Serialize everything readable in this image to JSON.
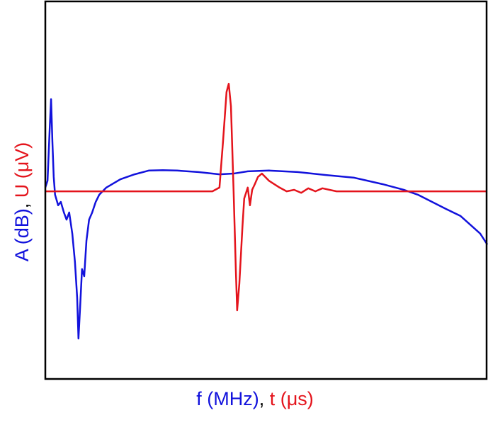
{
  "chart_data": {
    "type": "line",
    "xlabel": [
      {
        "text": "f (MHz)",
        "color": "#1212dc"
      },
      {
        "text": ", ",
        "color": "#000000"
      },
      {
        "text": "t (μs)",
        "color": "#e4141c"
      }
    ],
    "ylabel": [
      {
        "text": "A (dB)",
        "color": "#1212dc"
      },
      {
        "text": ", ",
        "color": "#000000"
      },
      {
        "text": "U (μV)",
        "color": "#e4141c"
      }
    ],
    "xlim": [
      0,
      100
    ],
    "ylim": [
      0,
      100
    ],
    "series": [
      {
        "color": "#1212dc",
        "x": [
          0,
          0.5,
          1.0,
          1.3,
          1.6,
          1.9,
          2.2,
          2.9,
          3.5,
          4.2,
          4.8,
          5.4,
          6.1,
          6.7,
          7.2,
          7.5,
          7.9,
          8.3,
          8.8,
          9.3,
          9.9,
          10.6,
          11.4,
          12.2,
          13.8,
          17.0,
          20.2,
          23.4,
          26.6,
          29.8,
          34.6,
          39.4,
          42.6,
          45.8,
          50.6,
          57.1,
          63.5,
          69.9,
          76.3,
          81.1,
          84.3,
          87.5,
          90.7,
          93.9,
          96.3,
          98.4,
          100
        ],
        "values": [
          50.7,
          52.5,
          66.6,
          74.1,
          62.8,
          53.5,
          48.8,
          46.0,
          46.9,
          44.1,
          42.2,
          44.1,
          38.5,
          31.0,
          21.6,
          10.7,
          19.7,
          29.1,
          27.2,
          36.6,
          42.2,
          44.1,
          46.9,
          48.8,
          50.7,
          52.9,
          54.2,
          55.2,
          55.3,
          55.2,
          54.8,
          54.2,
          54.4,
          55.0,
          55.2,
          54.8,
          54.0,
          53.3,
          51.6,
          50.1,
          48.8,
          46.9,
          45.0,
          43.2,
          40.7,
          38.5,
          35.6
        ]
      },
      {
        "color": "#e4141c",
        "x": [
          0,
          37.8,
          39.4,
          40.2,
          41.0,
          41.5,
          42.0,
          42.6,
          43.1,
          43.4,
          43.9,
          44.6,
          45.0,
          45.8,
          46.3,
          46.8,
          47.4,
          48.1,
          49.0,
          50.6,
          53.0,
          54.6,
          56.3,
          57.9,
          59.5,
          61.1,
          62.7,
          64.3,
          65.9,
          100
        ],
        "values": [
          49.7,
          49.7,
          50.7,
          62.8,
          76.0,
          78.2,
          72.2,
          49.7,
          29.1,
          18.2,
          25.3,
          40.3,
          47.8,
          50.7,
          46.0,
          50.1,
          51.6,
          53.5,
          54.4,
          52.5,
          50.7,
          49.7,
          50.1,
          49.3,
          50.5,
          49.7,
          50.5,
          50.1,
          49.7,
          49.7
        ]
      }
    ]
  }
}
